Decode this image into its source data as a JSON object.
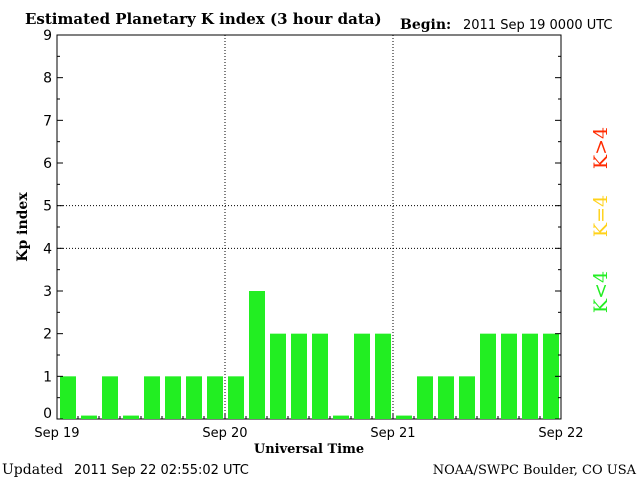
{
  "header": {
    "title": "Estimated Planetary K index (3 hour data)",
    "begin_label": "Begin:",
    "begin_value": "2011 Sep 19 0000 UTC"
  },
  "footer": {
    "updated_label": "Updated",
    "updated_value": "2011 Sep 22 02:55:02 UTC",
    "source": "NOAA/SWPC Boulder, CO USA"
  },
  "legend": [
    {
      "label": "K>4",
      "color": "#ff2a00"
    },
    {
      "label": "K=4",
      "color": "#ffd21a"
    },
    {
      "label": "K<4",
      "color": "#22ee22"
    }
  ],
  "chart_data": {
    "type": "bar",
    "title": "Estimated Planetary K index (3 hour data)",
    "xlabel": "Universal Time",
    "ylabel": "Kp index",
    "ylim": [
      0,
      9
    ],
    "yticks": [
      "0",
      "1",
      "2",
      "3",
      "4",
      "5",
      "6",
      "7",
      "8",
      "9"
    ],
    "xticks": [
      "Sep 19",
      "Sep 20",
      "Sep 21",
      "Sep 22"
    ],
    "grid": true,
    "bar_color": "#22ee22",
    "values": [
      1,
      0,
      1,
      0,
      1,
      1,
      1,
      1,
      1,
      3,
      2,
      2,
      2,
      0,
      2,
      2,
      0,
      1,
      1,
      1,
      2,
      2,
      2,
      2
    ]
  }
}
